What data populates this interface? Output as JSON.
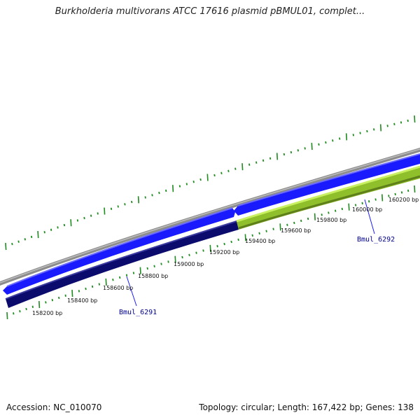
{
  "title": "Burkholderia multivorans ATCC 17616 plasmid pBMUL01, complet...",
  "footer": {
    "accession": "Accession: NC_010070",
    "summary": "Topology: circular; Length: 167,422 bp; Genes: 138"
  },
  "colors": {
    "backbone": "#8c8c8c",
    "gene_forward": "#1a1aff",
    "gene_reverse_dark": "#0b0b6e",
    "gene_reverse_green": "#9acd32",
    "tick": "#1e8c1e",
    "gene_label": "#00008b"
  },
  "position_labels": [
    "158200 bp",
    "158400 bp",
    "158600 bp",
    "158800 bp",
    "159000 bp",
    "159200 bp",
    "159400 bp",
    "159600 bp",
    "159800 bp",
    "160000 bp",
    "160200 bp"
  ],
  "genes": [
    {
      "id": "Bmul_6291",
      "strand": "reverse",
      "color": "dark"
    },
    {
      "id": "Bmul_6292",
      "strand": "reverse",
      "color": "green"
    }
  ],
  "forward_features": [
    {
      "strand": "forward",
      "color": "blue"
    },
    {
      "strand": "forward",
      "color": "blue"
    }
  ]
}
